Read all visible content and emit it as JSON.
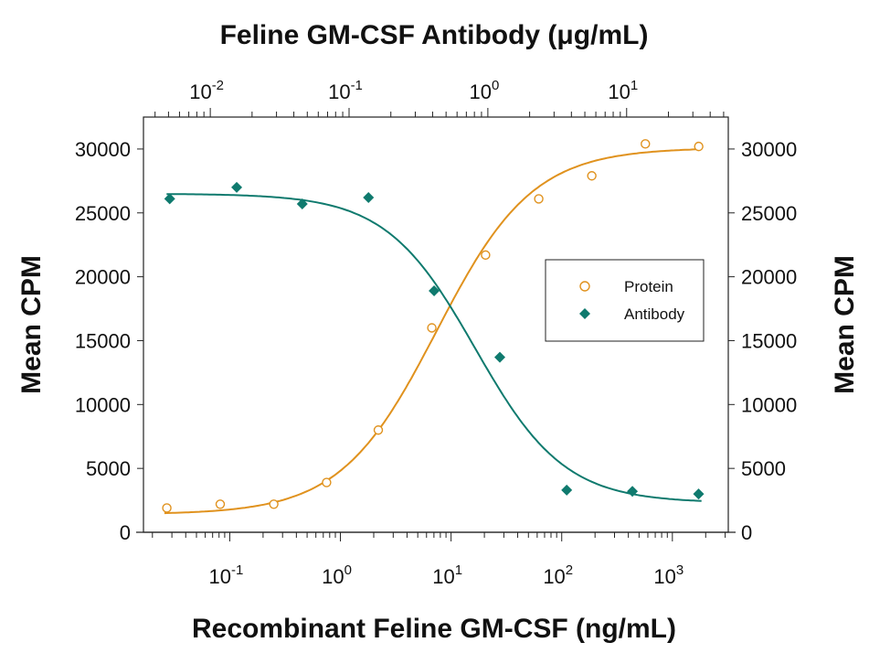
{
  "chart_data": {
    "type": "scatter",
    "title": "Feline GM-CSF Antibody (μg/mL)",
    "xlabel": "Recombinant Feline GM-CSF (ng/mL)",
    "ylabel": "Mean CPM",
    "ylabel_right": "Mean CPM",
    "x_scale": "log",
    "x_top_scale": "log",
    "xlim_bottom": [
      0.0166,
      3200
    ],
    "xlim_top": [
      0.0033,
      54
    ],
    "ylim": [
      0,
      32500
    ],
    "yticks": [
      0,
      5000,
      10000,
      15000,
      20000,
      25000,
      30000
    ],
    "xticks_bottom": [
      {
        "base": "10",
        "exp": "-1"
      },
      {
        "base": "10",
        "exp": "0"
      },
      {
        "base": "10",
        "exp": "1"
      },
      {
        "base": "10",
        "exp": "2"
      },
      {
        "base": "10",
        "exp": "3"
      }
    ],
    "xticks_top": [
      {
        "base": "10",
        "exp": "-2"
      },
      {
        "base": "10",
        "exp": "-1"
      },
      {
        "base": "10",
        "exp": "0"
      },
      {
        "base": "10",
        "exp": "1"
      }
    ],
    "grid": false,
    "legend_placement": "center-right",
    "series": [
      {
        "name": "Protein",
        "axis": "bottom",
        "marker": "open-circle",
        "color": "#E0921E",
        "x": [
          0.027,
          0.082,
          0.25,
          0.75,
          2.2,
          6.7,
          20.5,
          62,
          187,
          570,
          1730
        ],
        "y": [
          1900,
          2200,
          2200,
          3900,
          8000,
          16000,
          21700,
          26100,
          27900,
          30400,
          30200
        ],
        "fit": {
          "bottom": 1400,
          "top": 30100,
          "ec50": 7.4,
          "hill": 1.0
        }
      },
      {
        "name": "Antibody",
        "axis": "top",
        "marker": "filled-diamond",
        "color": "#0F7A6E",
        "x": [
          0.0051,
          0.0155,
          0.046,
          0.138,
          0.41,
          1.22,
          3.7,
          11,
          33
        ],
        "y": [
          26100,
          27000,
          25700,
          26200,
          18900,
          13700,
          3300,
          3200,
          3000
        ],
        "fit": {
          "bottom": 2300,
          "top": 26500,
          "ec50": 0.81,
          "hill": 1.35
        }
      }
    ]
  }
}
